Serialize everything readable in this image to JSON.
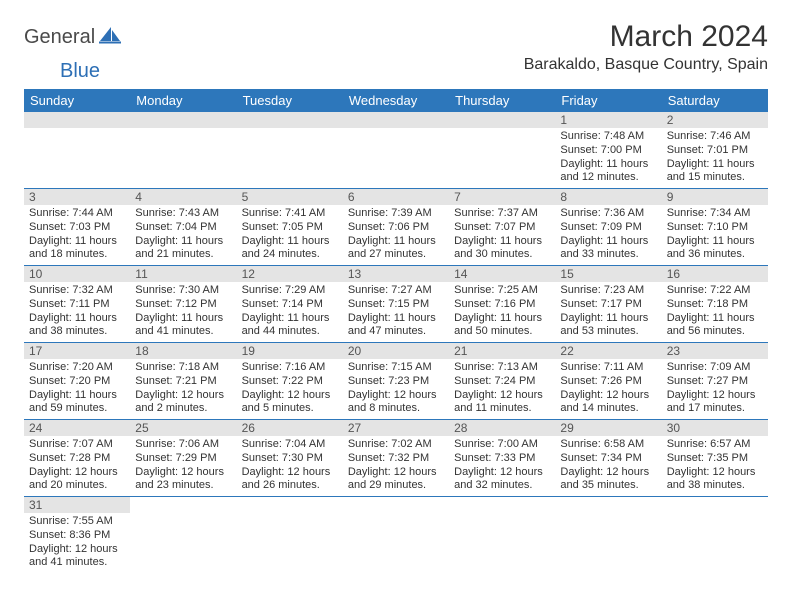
{
  "logo": {
    "text1": "General",
    "text2": "Blue"
  },
  "title": "March 2024",
  "location": "Barakaldo, Basque Country, Spain",
  "colors": {
    "header_bg": "#2d77bb",
    "header_text": "#ffffff",
    "daynum_bg": "#e4e4e4",
    "row_border": "#2d77bb",
    "logo_gray": "#4a4a4a",
    "logo_blue": "#2d6fb5"
  },
  "weekdays": [
    "Sunday",
    "Monday",
    "Tuesday",
    "Wednesday",
    "Thursday",
    "Friday",
    "Saturday"
  ],
  "weeks": [
    [
      null,
      null,
      null,
      null,
      null,
      {
        "n": "1",
        "sr": "Sunrise: 7:48 AM",
        "ss": "Sunset: 7:00 PM",
        "d1": "Daylight: 11 hours",
        "d2": "and 12 minutes."
      },
      {
        "n": "2",
        "sr": "Sunrise: 7:46 AM",
        "ss": "Sunset: 7:01 PM",
        "d1": "Daylight: 11 hours",
        "d2": "and 15 minutes."
      }
    ],
    [
      {
        "n": "3",
        "sr": "Sunrise: 7:44 AM",
        "ss": "Sunset: 7:03 PM",
        "d1": "Daylight: 11 hours",
        "d2": "and 18 minutes."
      },
      {
        "n": "4",
        "sr": "Sunrise: 7:43 AM",
        "ss": "Sunset: 7:04 PM",
        "d1": "Daylight: 11 hours",
        "d2": "and 21 minutes."
      },
      {
        "n": "5",
        "sr": "Sunrise: 7:41 AM",
        "ss": "Sunset: 7:05 PM",
        "d1": "Daylight: 11 hours",
        "d2": "and 24 minutes."
      },
      {
        "n": "6",
        "sr": "Sunrise: 7:39 AM",
        "ss": "Sunset: 7:06 PM",
        "d1": "Daylight: 11 hours",
        "d2": "and 27 minutes."
      },
      {
        "n": "7",
        "sr": "Sunrise: 7:37 AM",
        "ss": "Sunset: 7:07 PM",
        "d1": "Daylight: 11 hours",
        "d2": "and 30 minutes."
      },
      {
        "n": "8",
        "sr": "Sunrise: 7:36 AM",
        "ss": "Sunset: 7:09 PM",
        "d1": "Daylight: 11 hours",
        "d2": "and 33 minutes."
      },
      {
        "n": "9",
        "sr": "Sunrise: 7:34 AM",
        "ss": "Sunset: 7:10 PM",
        "d1": "Daylight: 11 hours",
        "d2": "and 36 minutes."
      }
    ],
    [
      {
        "n": "10",
        "sr": "Sunrise: 7:32 AM",
        "ss": "Sunset: 7:11 PM",
        "d1": "Daylight: 11 hours",
        "d2": "and 38 minutes."
      },
      {
        "n": "11",
        "sr": "Sunrise: 7:30 AM",
        "ss": "Sunset: 7:12 PM",
        "d1": "Daylight: 11 hours",
        "d2": "and 41 minutes."
      },
      {
        "n": "12",
        "sr": "Sunrise: 7:29 AM",
        "ss": "Sunset: 7:14 PM",
        "d1": "Daylight: 11 hours",
        "d2": "and 44 minutes."
      },
      {
        "n": "13",
        "sr": "Sunrise: 7:27 AM",
        "ss": "Sunset: 7:15 PM",
        "d1": "Daylight: 11 hours",
        "d2": "and 47 minutes."
      },
      {
        "n": "14",
        "sr": "Sunrise: 7:25 AM",
        "ss": "Sunset: 7:16 PM",
        "d1": "Daylight: 11 hours",
        "d2": "and 50 minutes."
      },
      {
        "n": "15",
        "sr": "Sunrise: 7:23 AM",
        "ss": "Sunset: 7:17 PM",
        "d1": "Daylight: 11 hours",
        "d2": "and 53 minutes."
      },
      {
        "n": "16",
        "sr": "Sunrise: 7:22 AM",
        "ss": "Sunset: 7:18 PM",
        "d1": "Daylight: 11 hours",
        "d2": "and 56 minutes."
      }
    ],
    [
      {
        "n": "17",
        "sr": "Sunrise: 7:20 AM",
        "ss": "Sunset: 7:20 PM",
        "d1": "Daylight: 11 hours",
        "d2": "and 59 minutes."
      },
      {
        "n": "18",
        "sr": "Sunrise: 7:18 AM",
        "ss": "Sunset: 7:21 PM",
        "d1": "Daylight: 12 hours",
        "d2": "and 2 minutes."
      },
      {
        "n": "19",
        "sr": "Sunrise: 7:16 AM",
        "ss": "Sunset: 7:22 PM",
        "d1": "Daylight: 12 hours",
        "d2": "and 5 minutes."
      },
      {
        "n": "20",
        "sr": "Sunrise: 7:15 AM",
        "ss": "Sunset: 7:23 PM",
        "d1": "Daylight: 12 hours",
        "d2": "and 8 minutes."
      },
      {
        "n": "21",
        "sr": "Sunrise: 7:13 AM",
        "ss": "Sunset: 7:24 PM",
        "d1": "Daylight: 12 hours",
        "d2": "and 11 minutes."
      },
      {
        "n": "22",
        "sr": "Sunrise: 7:11 AM",
        "ss": "Sunset: 7:26 PM",
        "d1": "Daylight: 12 hours",
        "d2": "and 14 minutes."
      },
      {
        "n": "23",
        "sr": "Sunrise: 7:09 AM",
        "ss": "Sunset: 7:27 PM",
        "d1": "Daylight: 12 hours",
        "d2": "and 17 minutes."
      }
    ],
    [
      {
        "n": "24",
        "sr": "Sunrise: 7:07 AM",
        "ss": "Sunset: 7:28 PM",
        "d1": "Daylight: 12 hours",
        "d2": "and 20 minutes."
      },
      {
        "n": "25",
        "sr": "Sunrise: 7:06 AM",
        "ss": "Sunset: 7:29 PM",
        "d1": "Daylight: 12 hours",
        "d2": "and 23 minutes."
      },
      {
        "n": "26",
        "sr": "Sunrise: 7:04 AM",
        "ss": "Sunset: 7:30 PM",
        "d1": "Daylight: 12 hours",
        "d2": "and 26 minutes."
      },
      {
        "n": "27",
        "sr": "Sunrise: 7:02 AM",
        "ss": "Sunset: 7:32 PM",
        "d1": "Daylight: 12 hours",
        "d2": "and 29 minutes."
      },
      {
        "n": "28",
        "sr": "Sunrise: 7:00 AM",
        "ss": "Sunset: 7:33 PM",
        "d1": "Daylight: 12 hours",
        "d2": "and 32 minutes."
      },
      {
        "n": "29",
        "sr": "Sunrise: 6:58 AM",
        "ss": "Sunset: 7:34 PM",
        "d1": "Daylight: 12 hours",
        "d2": "and 35 minutes."
      },
      {
        "n": "30",
        "sr": "Sunrise: 6:57 AM",
        "ss": "Sunset: 7:35 PM",
        "d1": "Daylight: 12 hours",
        "d2": "and 38 minutes."
      }
    ],
    [
      {
        "n": "31",
        "sr": "Sunrise: 7:55 AM",
        "ss": "Sunset: 8:36 PM",
        "d1": "Daylight: 12 hours",
        "d2": "and 41 minutes."
      },
      null,
      null,
      null,
      null,
      null,
      null
    ]
  ]
}
